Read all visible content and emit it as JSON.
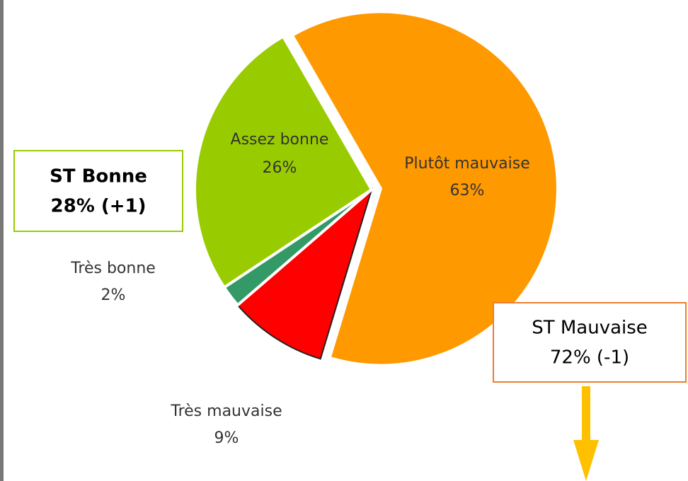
{
  "chart_data": {
    "type": "pie",
    "categories": [
      "Plutôt mauvaise",
      "Très mauvaise",
      "Très bonne",
      "Assez bonne"
    ],
    "values": [
      63,
      9,
      2,
      26
    ],
    "value_labels": [
      "63%",
      "9%",
      "2%",
      "26%"
    ],
    "colors": [
      "#ff9900",
      "#ff0000",
      "#339966",
      "#99cc00"
    ],
    "annotations": [
      {
        "lines": [
          "ST Bonne",
          "28% (+1)"
        ],
        "color": "#99cc00"
      },
      {
        "lines": [
          "ST Mauvaise",
          "72% (-1)"
        ],
        "color": "#ed7d31"
      }
    ]
  }
}
